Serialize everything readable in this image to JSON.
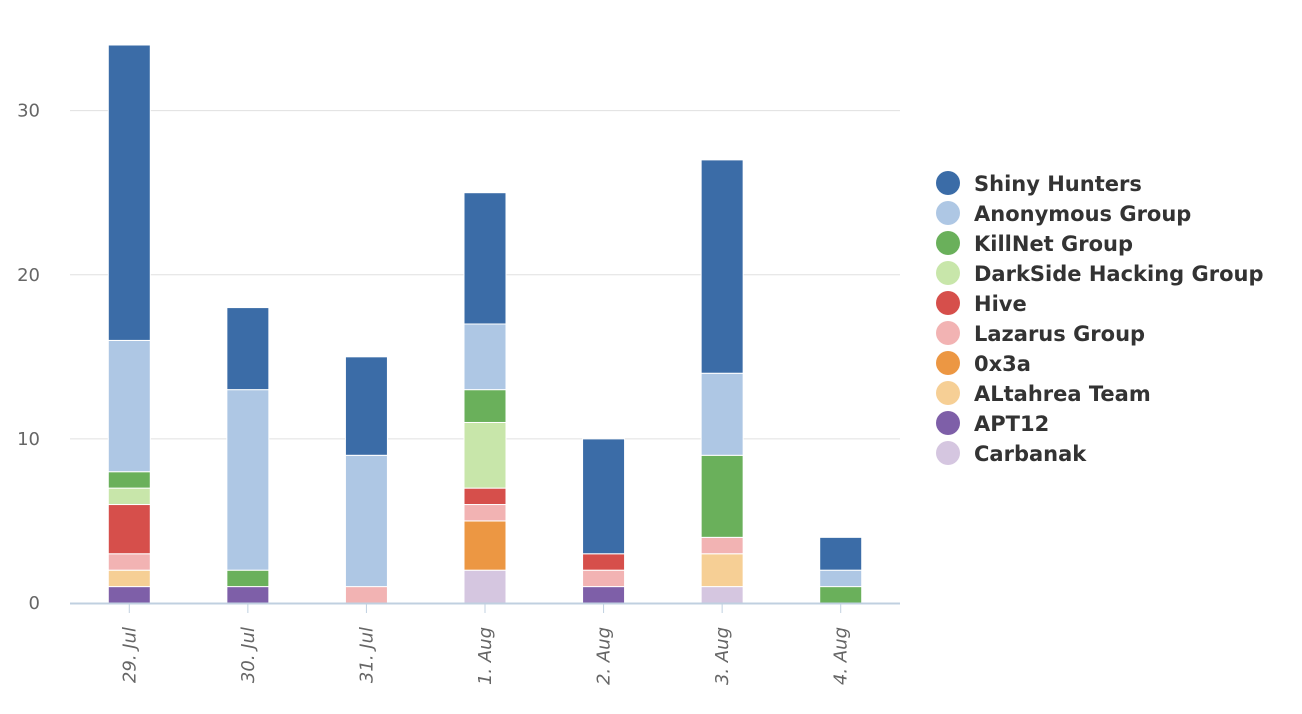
{
  "chart_data": {
    "type": "bar",
    "stacked": true,
    "categories": [
      "29. Jul",
      "30. Jul",
      "31. Jul",
      "1. Aug",
      "2. Aug",
      "3. Aug",
      "4. Aug"
    ],
    "ylim": [
      0,
      34
    ],
    "yticks": [
      0,
      10,
      20,
      30
    ],
    "grid": true,
    "legend_position": "right",
    "series": [
      {
        "name": "Carbanak",
        "color": "#d5c6e0",
        "values": [
          0,
          0,
          0,
          2,
          0,
          1,
          0
        ]
      },
      {
        "name": "APT12",
        "color": "#7e5fa8",
        "values": [
          1,
          1,
          0,
          0,
          1,
          0,
          0
        ]
      },
      {
        "name": "ALtahrea Team",
        "color": "#f6cf95",
        "values": [
          1,
          0,
          0,
          0,
          0,
          2,
          0
        ]
      },
      {
        "name": "0x3a",
        "color": "#ec9743",
        "values": [
          0,
          0,
          0,
          3,
          0,
          0,
          0
        ]
      },
      {
        "name": "Lazarus Group",
        "color": "#f2b3b3",
        "values": [
          1,
          0,
          1,
          1,
          1,
          1,
          0
        ]
      },
      {
        "name": "Hive",
        "color": "#d64f4b",
        "values": [
          3,
          0,
          0,
          1,
          1,
          0,
          0
        ]
      },
      {
        "name": "DarkSide Hacking Group",
        "color": "#c8e6aa",
        "values": [
          1,
          0,
          0,
          4,
          0,
          0,
          0
        ]
      },
      {
        "name": "KillNet Group",
        "color": "#6ab05b",
        "values": [
          1,
          1,
          0,
          2,
          0,
          5,
          1
        ]
      },
      {
        "name": "Anonymous Group",
        "color": "#aec7e4",
        "values": [
          8,
          11,
          8,
          4,
          0,
          5,
          1
        ]
      },
      {
        "name": "Shiny Hunters",
        "color": "#3b6ca7",
        "values": [
          18,
          5,
          6,
          8,
          7,
          13,
          2
        ]
      }
    ],
    "legend_order": [
      "Shiny Hunters",
      "Anonymous Group",
      "KillNet Group",
      "DarkSide Hacking Group",
      "Hive",
      "Lazarus Group",
      "0x3a",
      "ALtahrea Team",
      "APT12",
      "Carbanak"
    ]
  }
}
